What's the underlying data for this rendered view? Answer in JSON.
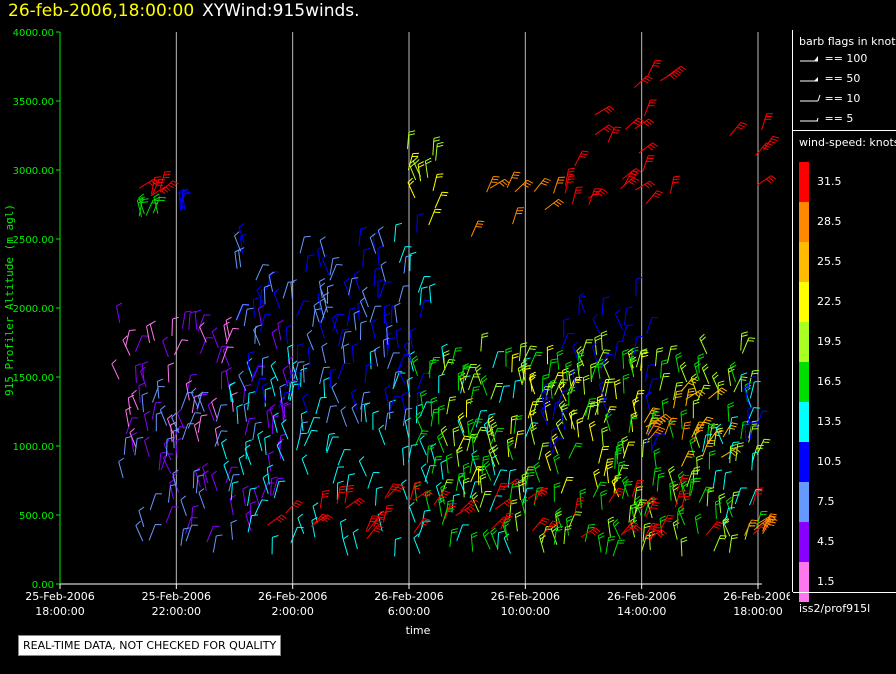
{
  "title": {
    "datetime": "26-feb-2006,18:00:00",
    "name": "XYWind:915winds."
  },
  "legend": {
    "flags_title": "barb flags in knots",
    "flags": [
      {
        "label": "== 100"
      },
      {
        "label": "== 50"
      },
      {
        "label": "== 10"
      },
      {
        "label": "== 5"
      }
    ],
    "speed_title": "wind-speed: knots",
    "speed_bins": [
      {
        "label": "31.5",
        "color": "#ff0000"
      },
      {
        "label": "28.5",
        "color": "#ff8800"
      },
      {
        "label": "25.5",
        "color": "#ffbb00"
      },
      {
        "label": "22.5",
        "color": "#ffff00"
      },
      {
        "label": "19.5",
        "color": "#aaff22"
      },
      {
        "label": "16.5",
        "color": "#00dd00"
      },
      {
        "label": "13.5",
        "color": "#00ffff"
      },
      {
        "label": "10.5",
        "color": "#0000ff"
      },
      {
        "label": "7.5",
        "color": "#6699ff"
      },
      {
        "label": "4.5",
        "color": "#8800ff"
      },
      {
        "label": "1.5",
        "color": "#ff77ee"
      }
    ]
  },
  "station": "iss2/prof915l",
  "qc_note": "REAL-TIME DATA, NOT CHECKED FOR QUALITY",
  "chart_data": {
    "type": "scatter",
    "ylabel": "915 Profiler Altitude (m agl)",
    "xlabel": "time",
    "ylim": [
      0,
      4000
    ],
    "xlim_hours": [
      0,
      24
    ],
    "grid": "vertical",
    "y_ticks": [
      "0.00",
      "500.00",
      "1000.00",
      "1500.00",
      "2000.00",
      "2500.00",
      "3000.00",
      "3500.00",
      "4000.00"
    ],
    "x_ticks": [
      {
        "line1": "25-Feb-2006",
        "line2": "18:00:00"
      },
      {
        "line1": "25-Feb-2006",
        "line2": "22:00:00"
      },
      {
        "line1": "26-Feb-2006",
        "line2": "2:00:00"
      },
      {
        "line1": "26-Feb-2006",
        "line2": "6:00:00"
      },
      {
        "line1": "26-Feb-2006",
        "line2": "10:00:00"
      },
      {
        "line1": "26-Feb-2006",
        "line2": "14:00:00"
      },
      {
        "line1": "26-Feb-2006",
        "line2": "18:00:00"
      }
    ],
    "barb_groups": [
      {
        "speed_knots": 31.5,
        "hour_from": 20.7,
        "hour_to": 21.6,
        "alt_from": 2800,
        "alt_to": 2900
      },
      {
        "speed_knots": 16.5,
        "hour_from": 20.6,
        "hour_to": 21.4,
        "alt_from": 2650,
        "alt_to": 2700
      },
      {
        "speed_knots": 10.5,
        "hour_from": 22.0,
        "hour_to": 22.4,
        "alt_from": 2700,
        "alt_to": 2750
      },
      {
        "speed_knots": 4.5,
        "hour_from": 20.0,
        "hour_to": 26.0,
        "alt_from": 300,
        "alt_to": 1900
      },
      {
        "speed_knots": 1.5,
        "hour_from": 20.0,
        "hour_to": 24.0,
        "alt_from": 900,
        "alt_to": 1800
      },
      {
        "speed_knots": 7.5,
        "hour_from": 20.0,
        "hour_to": 24.0,
        "alt_from": 200,
        "alt_to": 1400
      },
      {
        "speed_knots": 13.5,
        "hour_from": 23.5,
        "hour_to": 34.0,
        "alt_from": 200,
        "alt_to": 1600
      },
      {
        "speed_knots": 10.5,
        "hour_from": 24.0,
        "hour_to": 30.5,
        "alt_from": 1200,
        "alt_to": 2550
      },
      {
        "speed_knots": 7.5,
        "hour_from": 24.0,
        "hour_to": 30.0,
        "alt_from": 1000,
        "alt_to": 2450
      },
      {
        "speed_knots": 22.5,
        "hour_from": 29.5,
        "hour_to": 31.0,
        "alt_from": 2600,
        "alt_to": 3150
      },
      {
        "speed_knots": 19.5,
        "hour_from": 29.5,
        "hour_to": 31.0,
        "alt_from": 2900,
        "alt_to": 3200
      },
      {
        "speed_knots": 13.5,
        "hour_from": 29.5,
        "hour_to": 31.0,
        "alt_from": 2000,
        "alt_to": 2500
      },
      {
        "speed_knots": 28.5,
        "hour_from": 32.0,
        "hour_to": 35.0,
        "alt_from": 2500,
        "alt_to": 2900
      },
      {
        "speed_knots": 31.5,
        "hour_from": 35.0,
        "hour_to": 37.5,
        "alt_from": 2700,
        "alt_to": 3400
      },
      {
        "speed_knots": 31.5,
        "hour_from": 37.5,
        "hour_to": 39.0,
        "alt_from": 2700,
        "alt_to": 3750
      },
      {
        "speed_knots": 31.5,
        "hour_from": 41.0,
        "hour_to": 42.5,
        "alt_from": 2850,
        "alt_to": 3400
      },
      {
        "speed_knots": 22.5,
        "hour_from": 31.5,
        "hour_to": 38.0,
        "alt_from": 600,
        "alt_to": 1600
      },
      {
        "speed_knots": 19.5,
        "hour_from": 31.0,
        "hour_to": 42.0,
        "alt_from": 200,
        "alt_to": 1700
      },
      {
        "speed_knots": 16.5,
        "hour_from": 30.0,
        "hour_to": 42.0,
        "alt_from": 200,
        "alt_to": 1600
      },
      {
        "speed_knots": 10.5,
        "hour_from": 34.5,
        "hour_to": 38.5,
        "alt_from": 900,
        "alt_to": 2100
      },
      {
        "speed_knots": 25.5,
        "hour_from": 38.0,
        "hour_to": 41.0,
        "alt_from": 800,
        "alt_to": 1500
      },
      {
        "speed_knots": 28.5,
        "hour_from": 38.0,
        "hour_to": 40.0,
        "alt_from": 1000,
        "alt_to": 1300
      },
      {
        "speed_knots": 31.5,
        "hour_from": 25.0,
        "hour_to": 42.0,
        "alt_from": 300,
        "alt_to": 700
      },
      {
        "speed_knots": 13.5,
        "hour_from": 40.0,
        "hour_to": 42.0,
        "alt_from": 400,
        "alt_to": 1400
      },
      {
        "speed_knots": 10.5,
        "hour_from": 41.5,
        "hour_to": 42.0,
        "alt_from": 1000,
        "alt_to": 1400
      },
      {
        "speed_knots": 28.5,
        "hour_from": 41.5,
        "hour_to": 42.4,
        "alt_from": 350,
        "alt_to": 450
      }
    ]
  }
}
